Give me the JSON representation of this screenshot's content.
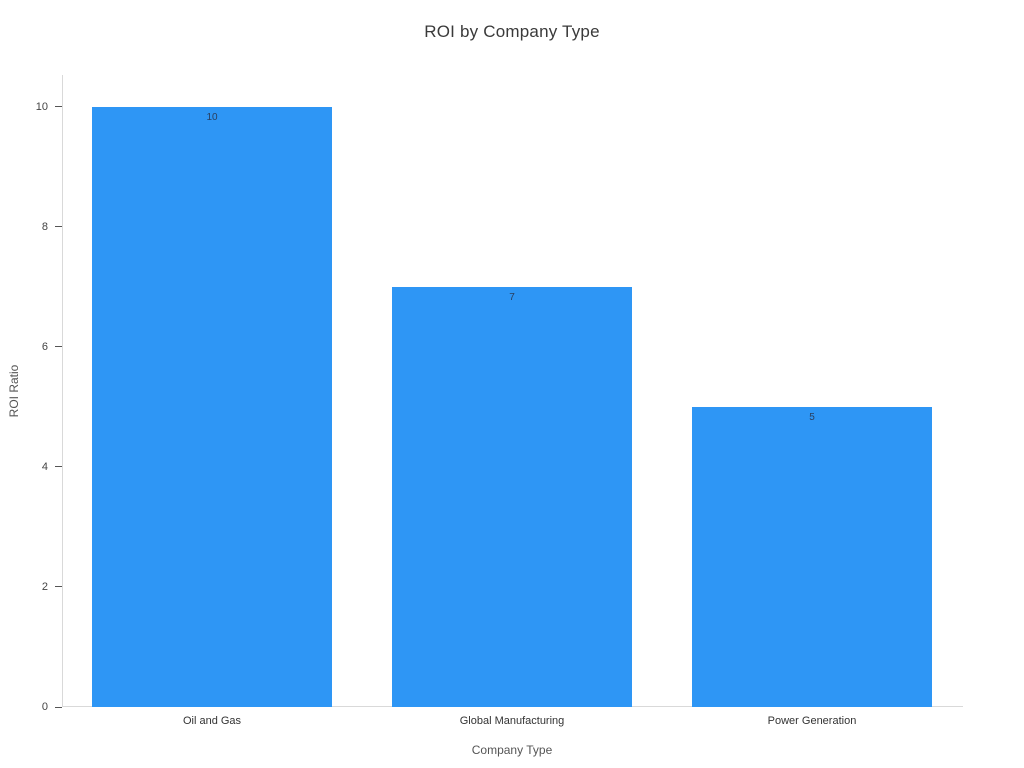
{
  "chart_data": {
    "type": "bar",
    "title": "ROI by Company Type",
    "xlabel": "Company Type",
    "ylabel": "ROI Ratio",
    "categories": [
      "Oil and Gas",
      "Global Manufacturing",
      "Power Generation"
    ],
    "values": [
      10,
      7,
      5
    ],
    "bar_labels": [
      "10",
      "7",
      "5"
    ],
    "yticks": [
      0,
      2,
      4,
      6,
      8,
      10
    ],
    "ylim": [
      0,
      10.53
    ],
    "grid": false,
    "legend": "none",
    "colors": {
      "bar": "#2E96F5",
      "bar_value_label": "#2a3f5f",
      "axis_line": "#d9d9d9"
    }
  }
}
